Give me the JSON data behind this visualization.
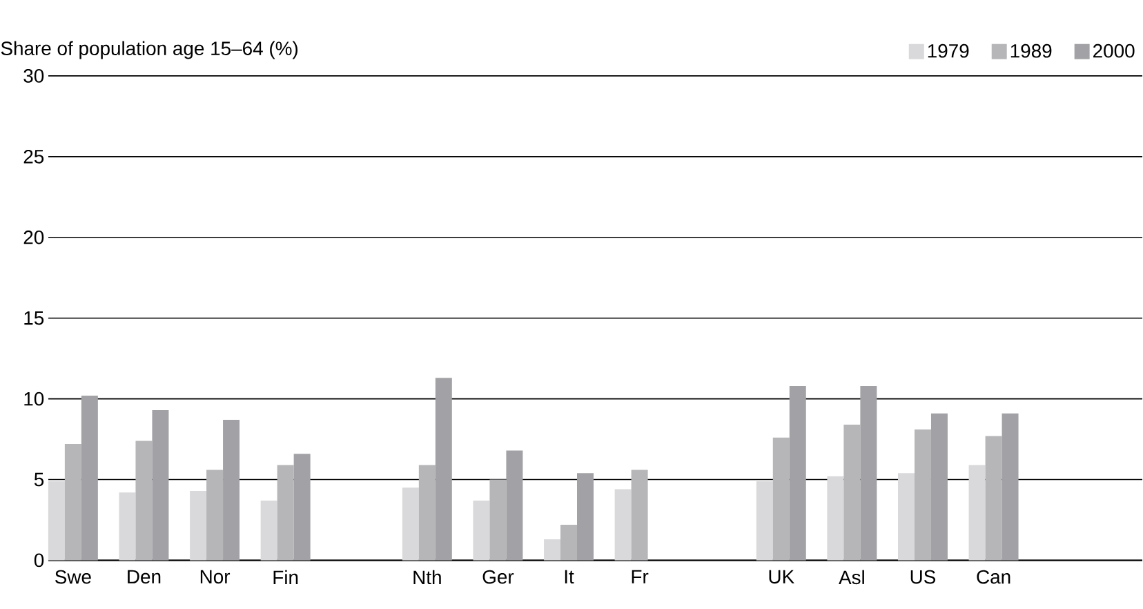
{
  "chart_data": {
    "type": "bar",
    "ylabel": "Share of population age 15–64 (%)",
    "categories": [
      "Swe",
      "Den",
      "Nor",
      "Fin",
      null,
      "Nth",
      "Ger",
      "It",
      "Fr",
      null,
      "UK",
      "Asl",
      "US",
      "Can"
    ],
    "series": [
      {
        "name": "1979",
        "color": "#d9d9db",
        "values": [
          4.9,
          4.2,
          4.3,
          3.7,
          null,
          4.5,
          3.7,
          1.3,
          4.4,
          null,
          4.9,
          5.2,
          5.4,
          5.9
        ]
      },
      {
        "name": "1989",
        "color": "#b6b6b9",
        "values": [
          7.2,
          7.4,
          5.6,
          5.9,
          null,
          5.9,
          5.0,
          2.2,
          5.6,
          null,
          7.6,
          8.4,
          8.1,
          7.7
        ]
      },
      {
        "name": "2000",
        "color": "#a2a2a6",
        "values": [
          10.2,
          9.3,
          8.7,
          6.6,
          null,
          11.3,
          6.8,
          5.4,
          null,
          null,
          10.8,
          10.8,
          9.1,
          9.1
        ]
      }
    ],
    "ylim": [
      0,
      30
    ],
    "yticks": [
      0,
      5,
      10,
      15,
      20,
      25,
      30
    ],
    "grid": "y",
    "legend": "top right"
  }
}
